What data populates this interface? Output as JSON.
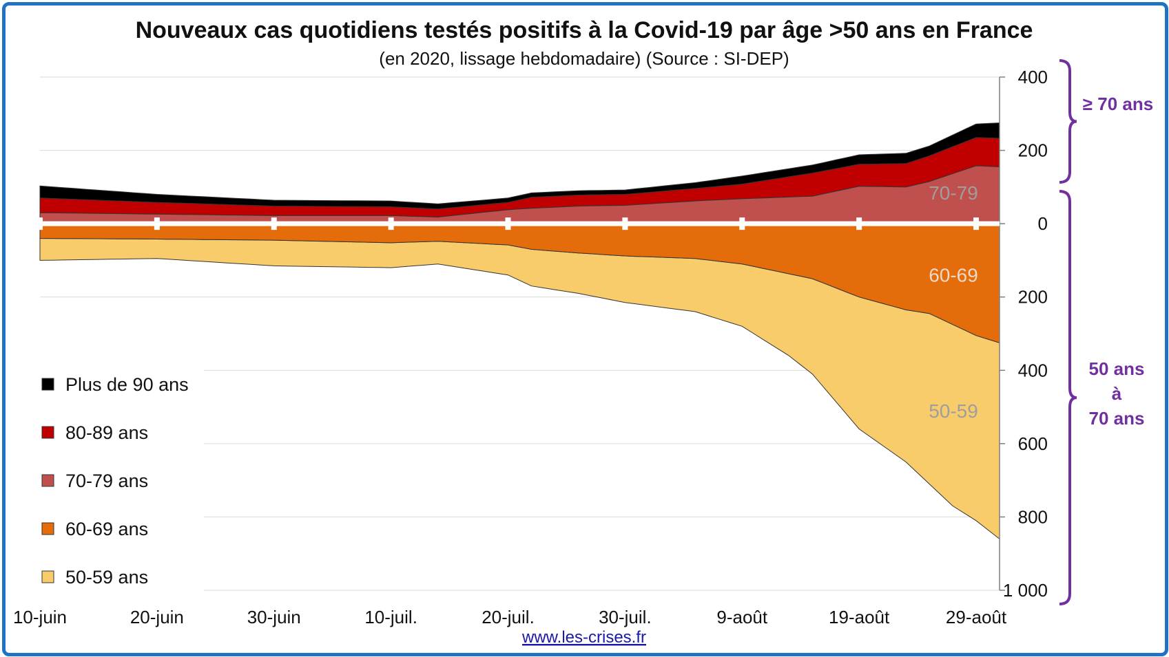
{
  "chart_data": {
    "type": "area",
    "title": "Nouveaux cas quotidiens testés positifs à la Covid-19 par âge >50 ans en France",
    "subtitle": "(en 2020, lissage hebdomadaire) (Source : SI-DEP)",
    "x_tick_labels": [
      "10-juin",
      "20-juin",
      "30-juin",
      "10-juil.",
      "20-juil.",
      "30-juil.",
      "9-août",
      "19-août",
      "29-août"
    ],
    "y_tick_labels": [
      "400",
      "200",
      "0",
      "200",
      "400",
      "600",
      "800",
      "1 000"
    ],
    "y_ticks": [
      400,
      200,
      0,
      -200,
      -400,
      -600,
      -800,
      -1000
    ],
    "ylim": [
      -1000,
      400
    ],
    "x_days": [
      0,
      82
    ],
    "grid": true,
    "legend_position": "left",
    "series_above_axis": [
      {
        "name": "70-79 ans",
        "color": "#c0504d",
        "x": [
          0,
          10,
          20,
          30,
          34,
          40,
          42,
          46,
          50,
          56,
          60,
          66,
          70,
          74,
          76,
          80,
          82
        ],
        "y": [
          30,
          26,
          22,
          22,
          18,
          38,
          42,
          48,
          50,
          62,
          68,
          75,
          102,
          100,
          115,
          158,
          155
        ]
      },
      {
        "name": "80-89 ans",
        "color": "#c00000",
        "x": [
          0,
          10,
          20,
          30,
          34,
          40,
          42,
          46,
          50,
          56,
          60,
          66,
          70,
          74,
          76,
          80,
          82
        ],
        "y": [
          70,
          58,
          48,
          46,
          40,
          58,
          72,
          78,
          80,
          96,
          108,
          138,
          162,
          164,
          185,
          235,
          233
        ]
      },
      {
        "name": "Plus de 90 ans",
        "color": "#000000",
        "x": [
          0,
          10,
          20,
          30,
          34,
          40,
          42,
          46,
          50,
          56,
          60,
          66,
          70,
          74,
          76,
          80,
          82
        ],
        "y": [
          103,
          80,
          64,
          62,
          54,
          70,
          84,
          90,
          92,
          112,
          130,
          160,
          188,
          192,
          212,
          272,
          275
        ]
      }
    ],
    "series_below_axis": [
      {
        "name": "60-69 ans",
        "color": "#e46c0a",
        "x": [
          0,
          10,
          20,
          30,
          34,
          40,
          42,
          46,
          50,
          56,
          60,
          66,
          70,
          74,
          76,
          80,
          82
        ],
        "y": [
          -40,
          -42,
          -45,
          -52,
          -48,
          -58,
          -70,
          -80,
          -88,
          -95,
          -110,
          -150,
          -200,
          -235,
          -245,
          -305,
          -325
        ]
      },
      {
        "name": "50-59 ans",
        "color": "#f8cb6b",
        "x": [
          0,
          10,
          20,
          30,
          34,
          40,
          42,
          46,
          50,
          56,
          60,
          64,
          66,
          70,
          74,
          76,
          78,
          80,
          82
        ],
        "y": [
          -100,
          -95,
          -115,
          -120,
          -110,
          -140,
          -170,
          -190,
          -215,
          -240,
          -280,
          -360,
          -410,
          -560,
          -650,
          -710,
          -770,
          -810,
          -860
        ]
      }
    ],
    "inner_labels": [
      {
        "text": "70-79",
        "y": 85
      },
      {
        "text": "60-69",
        "y": -140
      },
      {
        "text": "50-59",
        "y": -510
      }
    ],
    "legend": [
      "Plus de 90 ans",
      "80-89 ans",
      "70-79 ans",
      "60-69 ans",
      "50-59 ans"
    ],
    "legend_colors": [
      "#000000",
      "#c00000",
      "#c0504d",
      "#e46c0a",
      "#f8cb6b"
    ],
    "brace_labels": {
      "upper": "≥ 70 ans",
      "lower": [
        "50 ans",
        "à",
        "70 ans"
      ]
    },
    "brace_color": "#7030a0",
    "source_link": "www.les-crises.fr"
  }
}
